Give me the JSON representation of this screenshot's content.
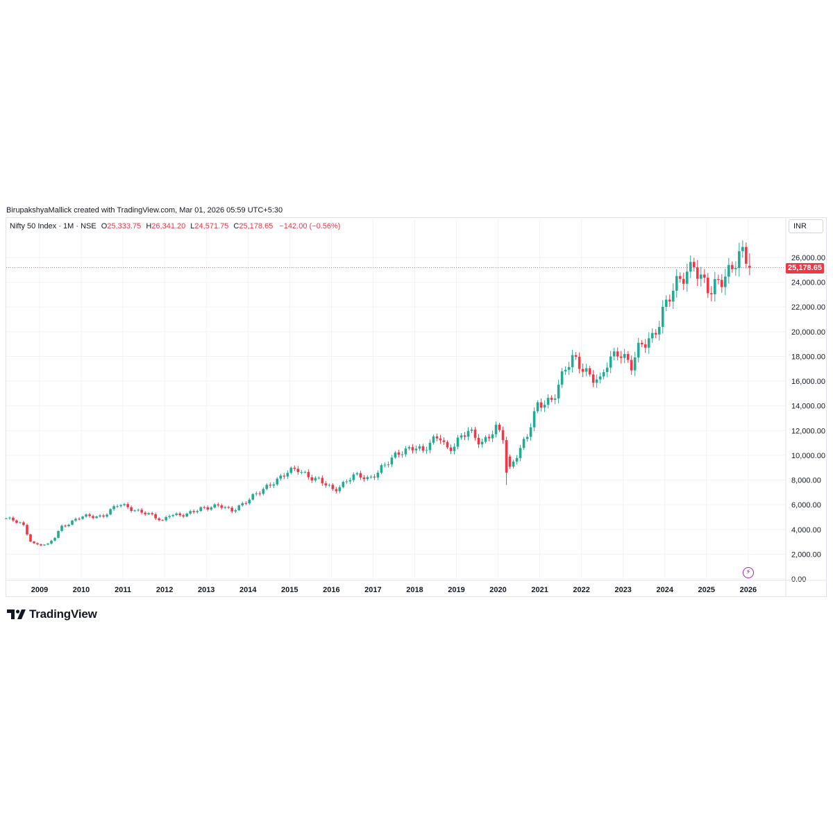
{
  "header": {
    "credit": "BirupakshyaMallick created with TradingView.com, Mar 01, 2026 05:59 UTC+5:30"
  },
  "legend": {
    "symbol": "Nifty 50 Index · 1M · NSE",
    "open_label": "O",
    "open": "25,333.75",
    "high_label": "H",
    "high": "26,341.20",
    "low_label": "L",
    "low": "24,571.75",
    "close_label": "C",
    "close": "25,178.65",
    "change": "−142.00 (−0.56%)"
  },
  "price_scale": {
    "currency": "INR",
    "last_price": "25,178.65"
  },
  "branding": {
    "logo_text": "TradingView"
  },
  "colors": {
    "up": "#22ab94",
    "down": "#f23645",
    "grid": "#f0f3fa",
    "text": "#131722",
    "accent": "#9c27b0"
  },
  "icons": {
    "logo": "tradingview-logo-icon",
    "bolt": "lightning-icon"
  },
  "chart_data": {
    "type": "candlestick",
    "title": "Nifty 50 Index · 1M · NSE",
    "interval": "1M",
    "xlabel": "",
    "ylabel": "",
    "y_ticks": [
      0,
      2000,
      4000,
      6000,
      8000,
      10000,
      12000,
      14000,
      16000,
      18000,
      20000,
      22000,
      24000,
      26000
    ],
    "y_tick_labels": [
      "0.00",
      "2,000.00",
      "4,000.00",
      "6,000.00",
      "8,000.00",
      "10,000.00",
      "12,000.00",
      "14,000.00",
      "16,000.00",
      "18,000.00",
      "20,000.00",
      "22,000.00",
      "24,000.00",
      "26,000.00"
    ],
    "ylim": [
      0,
      27000
    ],
    "x_ticks": [
      2009,
      2010,
      2011,
      2012,
      2013,
      2014,
      2015,
      2016,
      2017,
      2018,
      2019,
      2020,
      2021,
      2022,
      2023,
      2024,
      2025,
      2026
    ],
    "x_tick_labels": [
      "2009",
      "2010",
      "2011",
      "2012",
      "2013",
      "2014",
      "2015",
      "2016",
      "2017",
      "2018",
      "2019",
      "2020",
      "2021",
      "2022",
      "2023",
      "2024",
      "2025",
      "2026"
    ],
    "start_year": 2008.2,
    "anchors": [
      [
        2008.2,
        4900
      ],
      [
        2008.6,
        4400
      ],
      [
        2008.8,
        3000
      ],
      [
        2008.9,
        2800
      ],
      [
        2009.2,
        2750
      ],
      [
        2009.4,
        3500
      ],
      [
        2009.5,
        4200
      ],
      [
        2009.8,
        4700
      ],
      [
        2010.0,
        5000
      ],
      [
        2010.5,
        5100
      ],
      [
        2010.9,
        6000
      ],
      [
        2011.2,
        5700
      ],
      [
        2011.5,
        5400
      ],
      [
        2011.8,
        4900
      ],
      [
        2011.95,
        4650
      ],
      [
        2012.1,
        5300
      ],
      [
        2012.5,
        5100
      ],
      [
        2012.9,
        5800
      ],
      [
        2013.3,
        5900
      ],
      [
        2013.6,
        5500
      ],
      [
        2013.9,
        6200
      ],
      [
        2014.3,
        7000
      ],
      [
        2014.6,
        7900
      ],
      [
        2014.95,
        8600
      ],
      [
        2015.2,
        8800
      ],
      [
        2015.7,
        8000
      ],
      [
        2016.05,
        7100
      ],
      [
        2016.5,
        8400
      ],
      [
        2016.9,
        8000
      ],
      [
        2017.2,
        9100
      ],
      [
        2017.6,
        10000
      ],
      [
        2018.0,
        10900
      ],
      [
        2018.2,
        10300
      ],
      [
        2018.6,
        11600
      ],
      [
        2018.8,
        10500
      ],
      [
        2019.3,
        11900
      ],
      [
        2019.6,
        11100
      ],
      [
        2019.95,
        12100
      ],
      [
        2020.15,
        11200
      ],
      [
        2020.25,
        8600
      ],
      [
        2020.4,
        9900
      ],
      [
        2020.7,
        11600
      ],
      [
        2020.95,
        13900
      ],
      [
        2021.3,
        14700
      ],
      [
        2021.6,
        16800
      ],
      [
        2021.8,
        17700
      ],
      [
        2022.0,
        17300
      ],
      [
        2022.45,
        15800
      ],
      [
        2022.6,
        17200
      ],
      [
        2022.9,
        18700
      ],
      [
        2023.2,
        17200
      ],
      [
        2023.4,
        18600
      ],
      [
        2023.7,
        19700
      ],
      [
        2023.95,
        21700
      ],
      [
        2024.5,
        24900
      ],
      [
        2024.7,
        25800
      ],
      [
        2024.85,
        24200
      ],
      [
        2025.1,
        22900
      ],
      [
        2025.3,
        24300
      ],
      [
        2025.6,
        25300
      ],
      [
        2025.8,
        25900
      ],
      [
        2025.9,
        26000
      ],
      [
        2026.02,
        25200
      ]
    ],
    "last_candle": {
      "open": 25333.75,
      "high": 26341.2,
      "low": 24571.75,
      "close": 25178.65
    },
    "grid": true,
    "legend": "top-left"
  }
}
